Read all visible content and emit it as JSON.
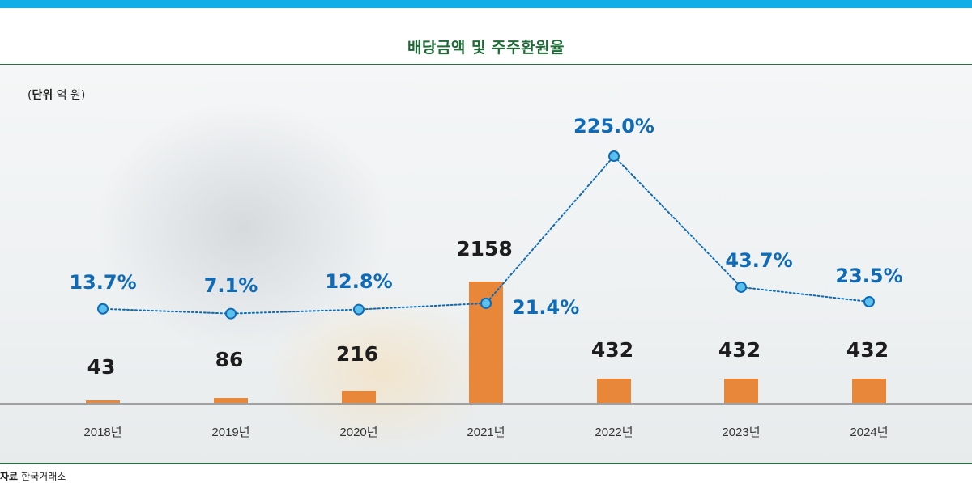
{
  "header": {
    "title": "배당금액 및 주주환원율",
    "unit_label": "단위",
    "unit_value": "억 원"
  },
  "footer": {
    "source_label": "자료",
    "source_value": "한국거래소"
  },
  "colors": {
    "top_band": "#12aee8",
    "title": "#1f6a37",
    "bar": "#e8873a",
    "line": "#0f6bb5",
    "marker_fill": "#5cc0ee"
  },
  "chart_data": {
    "type": "bar",
    "title": "배당금액 및 주주환원율",
    "categories": [
      "2018년",
      "2019년",
      "2020년",
      "2021년",
      "2022년",
      "2023년",
      "2024년"
    ],
    "series": [
      {
        "type": "bar",
        "values": [
          43,
          86,
          216,
          2158,
          432,
          432,
          432
        ],
        "labels": [
          "43",
          "86",
          "216",
          "2158",
          "432",
          "432",
          "432"
        ]
      },
      {
        "type": "line",
        "values": [
          13.7,
          7.1,
          12.8,
          21.4,
          225.0,
          43.7,
          23.5
        ],
        "labels": [
          "13.7%",
          "7.1%",
          "12.8%",
          "21.4%",
          "225.0%",
          "43.7%",
          "23.5%"
        ]
      }
    ],
    "bar_ylim": [
      0,
      2158
    ],
    "line_ylim": [
      0,
      225.0
    ],
    "grid": false,
    "legend": "none"
  }
}
